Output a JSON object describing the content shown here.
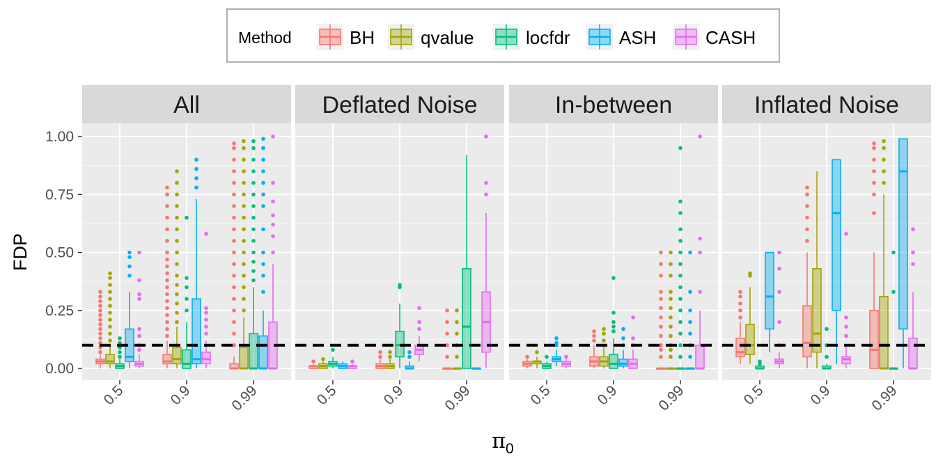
{
  "chart_data": {
    "type": "boxplot",
    "title": "",
    "xlabel": "π",
    "xlabel_sub": "0",
    "ylabel": "FDP",
    "ylim": [
      0,
      1
    ],
    "yticks": [
      "0.00",
      "0.25",
      "0.50",
      "0.75",
      "1.00"
    ],
    "ytick_values": [
      0,
      0.25,
      0.5,
      0.75,
      1.0
    ],
    "categories": [
      "0.5",
      "0.9",
      "0.99"
    ],
    "reference_line": 0.1,
    "legend_title": "Method",
    "legend_position": "top",
    "methods": [
      {
        "name": "BH",
        "color": "#F8766D"
      },
      {
        "name": "qvalue",
        "color": "#A3A500"
      },
      {
        "name": "locfdr",
        "color": "#00BF7D"
      },
      {
        "name": "ASH",
        "color": "#00B0F6"
      },
      {
        "name": "CASH",
        "color": "#E76BF3"
      }
    ],
    "panels": [
      {
        "name": "All",
        "groups": [
          [
            {
              "q1": 0.02,
              "med": 0.03,
              "q3": 0.04,
              "lo": 0.0,
              "hi": 0.06,
              "out": [
                0.07,
                0.09,
                0.11,
                0.13,
                0.15,
                0.17,
                0.19,
                0.21,
                0.23,
                0.25,
                0.27,
                0.29,
                0.31,
                0.33
              ]
            },
            {
              "q1": 0.02,
              "med": 0.03,
              "q3": 0.06,
              "lo": 0.0,
              "hi": 0.1,
              "out": [
                0.12,
                0.15,
                0.18,
                0.21,
                0.24,
                0.27,
                0.3,
                0.33,
                0.36,
                0.39,
                0.41
              ]
            },
            {
              "q1": 0.0,
              "med": 0.01,
              "q3": 0.02,
              "lo": 0.0,
              "hi": 0.04,
              "out": [
                0.05,
                0.07,
                0.09,
                0.11,
                0.13
              ]
            },
            {
              "q1": 0.03,
              "med": 0.05,
              "q3": 0.17,
              "lo": 0.0,
              "hi": 0.33,
              "out": [
                0.4,
                0.44,
                0.48,
                0.5
              ]
            },
            {
              "q1": 0.01,
              "med": 0.02,
              "q3": 0.03,
              "lo": 0.0,
              "hi": 0.06,
              "out": [
                0.08,
                0.1,
                0.14,
                0.17,
                0.3,
                0.32,
                0.38,
                0.5
              ]
            }
          ],
          [
            {
              "q1": 0.02,
              "med": 0.03,
              "q3": 0.06,
              "lo": 0.0,
              "hi": 0.12,
              "out": [
                0.14,
                0.17,
                0.2,
                0.23,
                0.26,
                0.29,
                0.32,
                0.35,
                0.38,
                0.41,
                0.44,
                0.47,
                0.5,
                0.55,
                0.6,
                0.65,
                0.7,
                0.75,
                0.78
              ]
            },
            {
              "q1": 0.02,
              "med": 0.04,
              "q3": 0.09,
              "lo": 0.0,
              "hi": 0.18,
              "out": [
                0.2,
                0.24,
                0.28,
                0.32,
                0.36,
                0.4,
                0.45,
                0.5,
                0.55,
                0.6,
                0.65,
                0.7,
                0.75,
                0.8,
                0.85
              ]
            },
            {
              "q1": 0.0,
              "med": 0.02,
              "q3": 0.08,
              "lo": 0.0,
              "hi": 0.2,
              "out": [
                0.25,
                0.3,
                0.35,
                0.39,
                0.65
              ]
            },
            {
              "q1": 0.02,
              "med": 0.04,
              "q3": 0.3,
              "lo": 0.0,
              "hi": 0.73,
              "out": [
                0.78,
                0.82,
                0.86,
                0.9
              ]
            },
            {
              "q1": 0.02,
              "med": 0.04,
              "q3": 0.07,
              "lo": 0.0,
              "hi": 0.12,
              "out": [
                0.15,
                0.18,
                0.21,
                0.24,
                0.26,
                0.58
              ]
            }
          ],
          [
            {
              "q1": 0.0,
              "med": 0.0,
              "q3": 0.02,
              "lo": 0.0,
              "hi": 0.05,
              "out": [
                0.1,
                0.15,
                0.2,
                0.25,
                0.3,
                0.35,
                0.4,
                0.45,
                0.5,
                0.55,
                0.6,
                0.65,
                0.7,
                0.75,
                0.8,
                0.85,
                0.9,
                0.95,
                0.97
              ]
            },
            {
              "q1": 0.0,
              "med": 0.0,
              "q3": 0.09,
              "lo": 0.0,
              "hi": 0.22,
              "out": [
                0.25,
                0.3,
                0.35,
                0.4,
                0.45,
                0.5,
                0.55,
                0.6,
                0.65,
                0.7,
                0.75,
                0.8,
                0.85,
                0.9,
                0.95,
                0.98
              ]
            },
            {
              "q1": 0.0,
              "med": 0.0,
              "q3": 0.15,
              "lo": 0.0,
              "hi": 0.35,
              "out": [
                0.38,
                0.42,
                0.46,
                0.5,
                0.55,
                0.6,
                0.65,
                0.7,
                0.75,
                0.8,
                0.85,
                0.9,
                0.95,
                0.98
              ]
            },
            {
              "q1": 0.0,
              "med": 0.0,
              "q3": 0.14,
              "lo": 0.0,
              "hi": 0.25,
              "out": [
                0.33,
                0.4,
                0.45,
                0.5,
                0.6,
                0.7,
                0.75,
                0.8,
                0.85,
                0.9,
                0.95,
                0.99
              ]
            },
            {
              "q1": 0.0,
              "med": 0.0,
              "q3": 0.2,
              "lo": 0.0,
              "hi": 0.45,
              "out": [
                0.5,
                0.57,
                0.62,
                0.66,
                0.72,
                0.8,
                1.0
              ]
            }
          ]
        ]
      },
      {
        "name": "Deflated Noise",
        "groups": [
          [
            {
              "q1": 0.0,
              "med": 0.01,
              "q3": 0.01,
              "lo": 0.0,
              "hi": 0.02,
              "out": [
                0.03
              ]
            },
            {
              "q1": 0.0,
              "med": 0.01,
              "q3": 0.02,
              "lo": 0.0,
              "hi": 0.03,
              "out": [
                0.04
              ]
            },
            {
              "q1": 0.01,
              "med": 0.02,
              "q3": 0.03,
              "lo": 0.0,
              "hi": 0.05,
              "out": [
                0.08
              ]
            },
            {
              "q1": 0.0,
              "med": 0.01,
              "q3": 0.02,
              "lo": 0.0,
              "hi": 0.03,
              "out": []
            },
            {
              "q1": 0.0,
              "med": 0.01,
              "q3": 0.01,
              "lo": 0.0,
              "hi": 0.02,
              "out": [
                0.03
              ]
            }
          ],
          [
            {
              "q1": 0.0,
              "med": 0.01,
              "q3": 0.02,
              "lo": 0.0,
              "hi": 0.04,
              "out": [
                0.05,
                0.07
              ]
            },
            {
              "q1": 0.0,
              "med": 0.01,
              "q3": 0.02,
              "lo": 0.0,
              "hi": 0.04,
              "out": [
                0.05,
                0.07
              ]
            },
            {
              "q1": 0.05,
              "med": 0.1,
              "q3": 0.16,
              "lo": 0.0,
              "hi": 0.28,
              "out": [
                0.35,
                0.36
              ]
            },
            {
              "q1": 0.0,
              "med": 0.0,
              "q3": 0.01,
              "lo": 0.0,
              "hi": 0.03,
              "out": [
                0.05,
                0.07
              ]
            },
            {
              "q1": 0.06,
              "med": 0.08,
              "q3": 0.1,
              "lo": 0.03,
              "hi": 0.14,
              "out": [
                0.17,
                0.2,
                0.26
              ]
            }
          ],
          [
            {
              "q1": 0.0,
              "med": 0.0,
              "q3": 0.0,
              "lo": 0.0,
              "hi": 0.0,
              "out": [
                0.05,
                0.1,
                0.15,
                0.2,
                0.25
              ]
            },
            {
              "q1": 0.0,
              "med": 0.0,
              "q3": 0.0,
              "lo": 0.0,
              "hi": 0.0,
              "out": [
                0.05,
                0.1,
                0.15,
                0.2,
                0.25
              ]
            },
            {
              "q1": 0.0,
              "med": 0.18,
              "q3": 0.43,
              "lo": 0.0,
              "hi": 0.92,
              "out": []
            },
            {
              "q1": 0.0,
              "med": 0.0,
              "q3": 0.0,
              "lo": 0.0,
              "hi": 0.0,
              "out": []
            },
            {
              "q1": 0.07,
              "med": 0.2,
              "q3": 0.33,
              "lo": 0.0,
              "hi": 0.67,
              "out": [
                0.75,
                0.8,
                1.0
              ]
            }
          ]
        ]
      },
      {
        "name": "In-between",
        "groups": [
          [
            {
              "q1": 0.01,
              "med": 0.02,
              "q3": 0.03,
              "lo": 0.0,
              "hi": 0.04,
              "out": [
                0.05
              ]
            },
            {
              "q1": 0.02,
              "med": 0.03,
              "q3": 0.03,
              "lo": 0.0,
              "hi": 0.05,
              "out": [
                0.07
              ]
            },
            {
              "q1": 0.0,
              "med": 0.01,
              "q3": 0.02,
              "lo": 0.0,
              "hi": 0.03,
              "out": [
                0.05
              ]
            },
            {
              "q1": 0.03,
              "med": 0.04,
              "q3": 0.05,
              "lo": 0.01,
              "hi": 0.08,
              "out": [
                0.1,
                0.11,
                0.13
              ]
            },
            {
              "q1": 0.01,
              "med": 0.02,
              "q3": 0.03,
              "lo": 0.0,
              "hi": 0.04,
              "out": [
                0.05
              ]
            }
          ],
          [
            {
              "q1": 0.01,
              "med": 0.03,
              "q3": 0.05,
              "lo": 0.0,
              "hi": 0.1,
              "out": [
                0.12,
                0.14,
                0.16
              ]
            },
            {
              "q1": 0.01,
              "med": 0.03,
              "q3": 0.05,
              "lo": 0.0,
              "hi": 0.1,
              "out": [
                0.12,
                0.15,
                0.17
              ]
            },
            {
              "q1": 0.0,
              "med": 0.02,
              "q3": 0.06,
              "lo": 0.0,
              "hi": 0.13,
              "out": [
                0.16,
                0.18,
                0.2,
                0.24,
                0.39
              ]
            },
            {
              "q1": 0.01,
              "med": 0.02,
              "q3": 0.04,
              "lo": 0.0,
              "hi": 0.08,
              "out": [
                0.1,
                0.13,
                0.17
              ]
            },
            {
              "q1": 0.0,
              "med": 0.02,
              "q3": 0.04,
              "lo": 0.0,
              "hi": 0.08,
              "out": [
                0.1,
                0.13,
                0.22
              ]
            }
          ],
          [
            {
              "q1": 0.0,
              "med": 0.0,
              "q3": 0.0,
              "lo": 0.0,
              "hi": 0.0,
              "out": [
                0.05,
                0.08,
                0.1,
                0.14,
                0.18,
                0.22,
                0.26,
                0.3,
                0.33,
                0.4,
                0.45,
                0.5
              ]
            },
            {
              "q1": 0.0,
              "med": 0.0,
              "q3": 0.0,
              "lo": 0.0,
              "hi": 0.0,
              "out": [
                0.05,
                0.08,
                0.1,
                0.14,
                0.18,
                0.22,
                0.26,
                0.3,
                0.33,
                0.4,
                0.45,
                0.5
              ]
            },
            {
              "q1": 0.0,
              "med": 0.0,
              "q3": 0.0,
              "lo": 0.0,
              "hi": 0.0,
              "out": [
                0.05,
                0.1,
                0.15,
                0.2,
                0.25,
                0.3,
                0.35,
                0.4,
                0.45,
                0.5,
                0.55,
                0.6,
                0.67,
                0.72,
                0.95
              ]
            },
            {
              "q1": 0.0,
              "med": 0.0,
              "q3": 0.0,
              "lo": 0.0,
              "hi": 0.0,
              "out": [
                0.05,
                0.1,
                0.15,
                0.2,
                0.25,
                0.33,
                0.5
              ]
            },
            {
              "q1": 0.0,
              "med": 0.0,
              "q3": 0.1,
              "lo": 0.0,
              "hi": 0.25,
              "out": [
                0.33,
                0.5,
                0.56,
                1.0
              ]
            }
          ]
        ]
      },
      {
        "name": "Inflated Noise",
        "groups": [
          [
            {
              "q1": 0.05,
              "med": 0.07,
              "q3": 0.13,
              "lo": 0.02,
              "hi": 0.2,
              "out": [
                0.22,
                0.25,
                0.28,
                0.31,
                0.33
              ]
            },
            {
              "q1": 0.06,
              "med": 0.1,
              "q3": 0.19,
              "lo": 0.02,
              "hi": 0.35,
              "out": [
                0.4,
                0.41
              ]
            },
            {
              "q1": 0.0,
              "med": 0.0,
              "q3": 0.01,
              "lo": 0.0,
              "hi": 0.01,
              "out": [
                0.02,
                0.03
              ]
            },
            {
              "q1": 0.17,
              "med": 0.31,
              "q3": 0.5,
              "lo": 0.07,
              "hi": 0.5,
              "out": []
            },
            {
              "q1": 0.02,
              "med": 0.03,
              "q3": 0.04,
              "lo": 0.0,
              "hi": 0.07,
              "out": [
                0.1,
                0.2,
                0.33,
                0.43,
                0.5
              ]
            }
          ],
          [
            {
              "q1": 0.05,
              "med": 0.11,
              "q3": 0.27,
              "lo": 0.0,
              "hi": 0.5,
              "out": [
                0.55,
                0.6,
                0.65,
                0.7,
                0.75,
                0.78
              ]
            },
            {
              "q1": 0.07,
              "med": 0.15,
              "q3": 0.43,
              "lo": 0.0,
              "hi": 0.85,
              "out": []
            },
            {
              "q1": 0.0,
              "med": 0.0,
              "q3": 0.01,
              "lo": 0.0,
              "hi": 0.02,
              "out": [
                0.05,
                0.1,
                0.17
              ]
            },
            {
              "q1": 0.25,
              "med": 0.67,
              "q3": 0.9,
              "lo": 0.02,
              "hi": 0.9,
              "out": []
            },
            {
              "q1": 0.02,
              "med": 0.04,
              "q3": 0.05,
              "lo": 0.0,
              "hi": 0.1,
              "out": [
                0.14,
                0.18,
                0.22,
                0.58
              ]
            }
          ],
          [
            {
              "q1": 0.0,
              "med": 0.08,
              "q3": 0.25,
              "lo": 0.0,
              "hi": 0.5,
              "out": [
                0.67,
                0.75,
                0.8,
                0.85,
                0.9,
                0.95,
                0.97
              ]
            },
            {
              "q1": 0.0,
              "med": 0.0,
              "q3": 0.31,
              "lo": 0.0,
              "hi": 0.75,
              "out": [
                0.8,
                0.85,
                0.9,
                0.95,
                0.98
              ]
            },
            {
              "q1": 0.0,
              "med": 0.0,
              "q3": 0.0,
              "lo": 0.0,
              "hi": 0.0,
              "out": [
                0.33,
                0.5
              ]
            },
            {
              "q1": 0.17,
              "med": 0.85,
              "q3": 0.99,
              "lo": 0.0,
              "hi": 0.99,
              "out": []
            },
            {
              "q1": 0.0,
              "med": 0.0,
              "q3": 0.13,
              "lo": 0.0,
              "hi": 0.33,
              "out": [
                0.45,
                0.5,
                0.6
              ]
            }
          ]
        ]
      }
    ]
  }
}
